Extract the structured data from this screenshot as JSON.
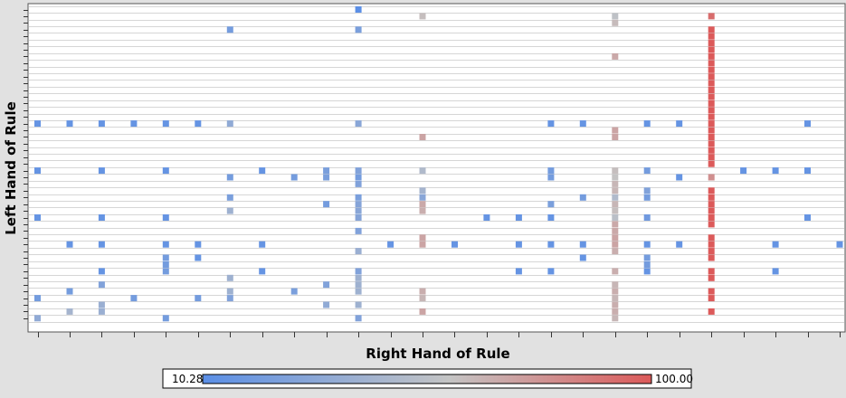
{
  "chart_data": {
    "type": "heatmap",
    "xlabel": "Right Hand of Rule",
    "ylabel": "Left Hand of Rule",
    "color_scale": {
      "min": 10.28,
      "max": 100.0,
      "min_label": "10.28",
      "max_label": "100.00",
      "min_color": "#5b8fe6",
      "mid_color": "#c4c4c4",
      "max_color": "#dc5a5a"
    },
    "x_count": 26,
    "y_count": 47,
    "cells": [
      {
        "x": 10,
        "y": 0,
        "v": 10
      },
      {
        "x": 12,
        "y": 1,
        "v": 62
      },
      {
        "x": 18,
        "y": 1,
        "v": 57
      },
      {
        "x": 21,
        "y": 1,
        "v": 93
      },
      {
        "x": 18,
        "y": 2,
        "v": 63
      },
      {
        "x": 6,
        "y": 3,
        "v": 22
      },
      {
        "x": 10,
        "y": 3,
        "v": 25
      },
      {
        "x": 21,
        "y": 3,
        "v": 100
      },
      {
        "x": 21,
        "y": 4,
        "v": 100
      },
      {
        "x": 21,
        "y": 5,
        "v": 100
      },
      {
        "x": 21,
        "y": 6,
        "v": 100
      },
      {
        "x": 18,
        "y": 7,
        "v": 70
      },
      {
        "x": 21,
        "y": 7,
        "v": 100
      },
      {
        "x": 21,
        "y": 8,
        "v": 100
      },
      {
        "x": 21,
        "y": 9,
        "v": 100
      },
      {
        "x": 21,
        "y": 10,
        "v": 100
      },
      {
        "x": 21,
        "y": 11,
        "v": 100
      },
      {
        "x": 21,
        "y": 12,
        "v": 100
      },
      {
        "x": 21,
        "y": 13,
        "v": 100
      },
      {
        "x": 21,
        "y": 14,
        "v": 100
      },
      {
        "x": 21,
        "y": 15,
        "v": 100
      },
      {
        "x": 21,
        "y": 16,
        "v": 100
      },
      {
        "x": 0,
        "y": 17,
        "v": 15
      },
      {
        "x": 1,
        "y": 17,
        "v": 15
      },
      {
        "x": 2,
        "y": 17,
        "v": 15
      },
      {
        "x": 3,
        "y": 17,
        "v": 15
      },
      {
        "x": 4,
        "y": 17,
        "v": 15
      },
      {
        "x": 5,
        "y": 17,
        "v": 15
      },
      {
        "x": 6,
        "y": 17,
        "v": 35
      },
      {
        "x": 10,
        "y": 17,
        "v": 32
      },
      {
        "x": 16,
        "y": 17,
        "v": 15
      },
      {
        "x": 17,
        "y": 17,
        "v": 15
      },
      {
        "x": 19,
        "y": 17,
        "v": 15
      },
      {
        "x": 20,
        "y": 17,
        "v": 15
      },
      {
        "x": 21,
        "y": 17,
        "v": 100
      },
      {
        "x": 24,
        "y": 17,
        "v": 15
      },
      {
        "x": 18,
        "y": 18,
        "v": 72
      },
      {
        "x": 21,
        "y": 18,
        "v": 100
      },
      {
        "x": 12,
        "y": 19,
        "v": 72
      },
      {
        "x": 18,
        "y": 19,
        "v": 72
      },
      {
        "x": 21,
        "y": 19,
        "v": 100
      },
      {
        "x": 21,
        "y": 20,
        "v": 100
      },
      {
        "x": 21,
        "y": 21,
        "v": 100
      },
      {
        "x": 21,
        "y": 22,
        "v": 100
      },
      {
        "x": 21,
        "y": 23,
        "v": 100
      },
      {
        "x": 0,
        "y": 24,
        "v": 15
      },
      {
        "x": 2,
        "y": 24,
        "v": 15
      },
      {
        "x": 4,
        "y": 24,
        "v": 15
      },
      {
        "x": 7,
        "y": 24,
        "v": 15
      },
      {
        "x": 9,
        "y": 24,
        "v": 25
      },
      {
        "x": 10,
        "y": 24,
        "v": 28
      },
      {
        "x": 12,
        "y": 24,
        "v": 50
      },
      {
        "x": 16,
        "y": 24,
        "v": 22
      },
      {
        "x": 18,
        "y": 24,
        "v": 62
      },
      {
        "x": 19,
        "y": 24,
        "v": 22
      },
      {
        "x": 22,
        "y": 24,
        "v": 15
      },
      {
        "x": 23,
        "y": 24,
        "v": 15
      },
      {
        "x": 24,
        "y": 24,
        "v": 15
      },
      {
        "x": 6,
        "y": 25,
        "v": 22
      },
      {
        "x": 8,
        "y": 25,
        "v": 22
      },
      {
        "x": 9,
        "y": 25,
        "v": 25
      },
      {
        "x": 10,
        "y": 25,
        "v": 22
      },
      {
        "x": 16,
        "y": 25,
        "v": 22
      },
      {
        "x": 18,
        "y": 25,
        "v": 60
      },
      {
        "x": 20,
        "y": 25,
        "v": 15
      },
      {
        "x": 21,
        "y": 25,
        "v": 80
      },
      {
        "x": 10,
        "y": 26,
        "v": 28
      },
      {
        "x": 18,
        "y": 26,
        "v": 65
      },
      {
        "x": 12,
        "y": 27,
        "v": 45
      },
      {
        "x": 18,
        "y": 27,
        "v": 65
      },
      {
        "x": 19,
        "y": 27,
        "v": 28
      },
      {
        "x": 21,
        "y": 27,
        "v": 100
      },
      {
        "x": 6,
        "y": 28,
        "v": 25
      },
      {
        "x": 10,
        "y": 28,
        "v": 25
      },
      {
        "x": 12,
        "y": 28,
        "v": 32
      },
      {
        "x": 17,
        "y": 28,
        "v": 22
      },
      {
        "x": 18,
        "y": 28,
        "v": 50
      },
      {
        "x": 19,
        "y": 28,
        "v": 22
      },
      {
        "x": 21,
        "y": 28,
        "v": 100
      },
      {
        "x": 9,
        "y": 29,
        "v": 22
      },
      {
        "x": 10,
        "y": 29,
        "v": 30
      },
      {
        "x": 12,
        "y": 29,
        "v": 70
      },
      {
        "x": 16,
        "y": 29,
        "v": 25
      },
      {
        "x": 18,
        "y": 29,
        "v": 65
      },
      {
        "x": 21,
        "y": 29,
        "v": 100
      },
      {
        "x": 6,
        "y": 30,
        "v": 42
      },
      {
        "x": 10,
        "y": 30,
        "v": 32
      },
      {
        "x": 12,
        "y": 30,
        "v": 68
      },
      {
        "x": 18,
        "y": 30,
        "v": 62
      },
      {
        "x": 21,
        "y": 30,
        "v": 100
      },
      {
        "x": 0,
        "y": 31,
        "v": 15
      },
      {
        "x": 2,
        "y": 31,
        "v": 15
      },
      {
        "x": 4,
        "y": 31,
        "v": 15
      },
      {
        "x": 10,
        "y": 31,
        "v": 30
      },
      {
        "x": 14,
        "y": 31,
        "v": 15
      },
      {
        "x": 15,
        "y": 31,
        "v": 15
      },
      {
        "x": 16,
        "y": 31,
        "v": 15
      },
      {
        "x": 18,
        "y": 31,
        "v": 55
      },
      {
        "x": 19,
        "y": 31,
        "v": 20
      },
      {
        "x": 21,
        "y": 31,
        "v": 100
      },
      {
        "x": 24,
        "y": 31,
        "v": 15
      },
      {
        "x": 18,
        "y": 32,
        "v": 70
      },
      {
        "x": 21,
        "y": 32,
        "v": 100
      },
      {
        "x": 10,
        "y": 33,
        "v": 28
      },
      {
        "x": 18,
        "y": 33,
        "v": 70
      },
      {
        "x": 12,
        "y": 34,
        "v": 72
      },
      {
        "x": 18,
        "y": 34,
        "v": 72
      },
      {
        "x": 21,
        "y": 34,
        "v": 100
      },
      {
        "x": 1,
        "y": 35,
        "v": 15
      },
      {
        "x": 2,
        "y": 35,
        "v": 15
      },
      {
        "x": 4,
        "y": 35,
        "v": 15
      },
      {
        "x": 5,
        "y": 35,
        "v": 15
      },
      {
        "x": 7,
        "y": 35,
        "v": 15
      },
      {
        "x": 11,
        "y": 35,
        "v": 15
      },
      {
        "x": 12,
        "y": 35,
        "v": 72
      },
      {
        "x": 13,
        "y": 35,
        "v": 15
      },
      {
        "x": 15,
        "y": 35,
        "v": 15
      },
      {
        "x": 16,
        "y": 35,
        "v": 15
      },
      {
        "x": 17,
        "y": 35,
        "v": 15
      },
      {
        "x": 18,
        "y": 35,
        "v": 72
      },
      {
        "x": 19,
        "y": 35,
        "v": 15
      },
      {
        "x": 20,
        "y": 35,
        "v": 15
      },
      {
        "x": 21,
        "y": 35,
        "v": 100
      },
      {
        "x": 23,
        "y": 35,
        "v": 15
      },
      {
        "x": 25,
        "y": 35,
        "v": 15
      },
      {
        "x": 10,
        "y": 36,
        "v": 40
      },
      {
        "x": 18,
        "y": 36,
        "v": 68
      },
      {
        "x": 21,
        "y": 36,
        "v": 100
      },
      {
        "x": 4,
        "y": 37,
        "v": 22
      },
      {
        "x": 5,
        "y": 37,
        "v": 15
      },
      {
        "x": 17,
        "y": 37,
        "v": 15
      },
      {
        "x": 19,
        "y": 37,
        "v": 22
      },
      {
        "x": 21,
        "y": 37,
        "v": 100
      },
      {
        "x": 4,
        "y": 38,
        "v": 22
      },
      {
        "x": 19,
        "y": 38,
        "v": 22
      },
      {
        "x": 2,
        "y": 39,
        "v": 15
      },
      {
        "x": 4,
        "y": 39,
        "v": 22
      },
      {
        "x": 7,
        "y": 39,
        "v": 15
      },
      {
        "x": 10,
        "y": 39,
        "v": 28
      },
      {
        "x": 15,
        "y": 39,
        "v": 15
      },
      {
        "x": 16,
        "y": 39,
        "v": 15
      },
      {
        "x": 18,
        "y": 39,
        "v": 68
      },
      {
        "x": 19,
        "y": 39,
        "v": 15
      },
      {
        "x": 21,
        "y": 39,
        "v": 100
      },
      {
        "x": 23,
        "y": 39,
        "v": 15
      },
      {
        "x": 6,
        "y": 40,
        "v": 42
      },
      {
        "x": 10,
        "y": 40,
        "v": 42
      },
      {
        "x": 21,
        "y": 40,
        "v": 100
      },
      {
        "x": 2,
        "y": 41,
        "v": 28
      },
      {
        "x": 9,
        "y": 41,
        "v": 28
      },
      {
        "x": 10,
        "y": 41,
        "v": 42
      },
      {
        "x": 18,
        "y": 41,
        "v": 65
      },
      {
        "x": 1,
        "y": 42,
        "v": 22
      },
      {
        "x": 6,
        "y": 42,
        "v": 42
      },
      {
        "x": 8,
        "y": 42,
        "v": 25
      },
      {
        "x": 10,
        "y": 42,
        "v": 42
      },
      {
        "x": 12,
        "y": 42,
        "v": 68
      },
      {
        "x": 18,
        "y": 42,
        "v": 68
      },
      {
        "x": 21,
        "y": 42,
        "v": 100
      },
      {
        "x": 0,
        "y": 43,
        "v": 22
      },
      {
        "x": 3,
        "y": 43,
        "v": 22
      },
      {
        "x": 5,
        "y": 43,
        "v": 22
      },
      {
        "x": 6,
        "y": 43,
        "v": 28
      },
      {
        "x": 12,
        "y": 43,
        "v": 65
      },
      {
        "x": 18,
        "y": 43,
        "v": 65
      },
      {
        "x": 21,
        "y": 43,
        "v": 100
      },
      {
        "x": 2,
        "y": 44,
        "v": 40
      },
      {
        "x": 9,
        "y": 44,
        "v": 35
      },
      {
        "x": 10,
        "y": 44,
        "v": 42
      },
      {
        "x": 18,
        "y": 44,
        "v": 68
      },
      {
        "x": 1,
        "y": 45,
        "v": 45
      },
      {
        "x": 2,
        "y": 45,
        "v": 40
      },
      {
        "x": 12,
        "y": 45,
        "v": 72
      },
      {
        "x": 18,
        "y": 45,
        "v": 68
      },
      {
        "x": 21,
        "y": 45,
        "v": 100
      },
      {
        "x": 0,
        "y": 46,
        "v": 35
      },
      {
        "x": 4,
        "y": 46,
        "v": 22
      },
      {
        "x": 10,
        "y": 46,
        "v": 28
      },
      {
        "x": 18,
        "y": 46,
        "v": 65
      }
    ]
  }
}
